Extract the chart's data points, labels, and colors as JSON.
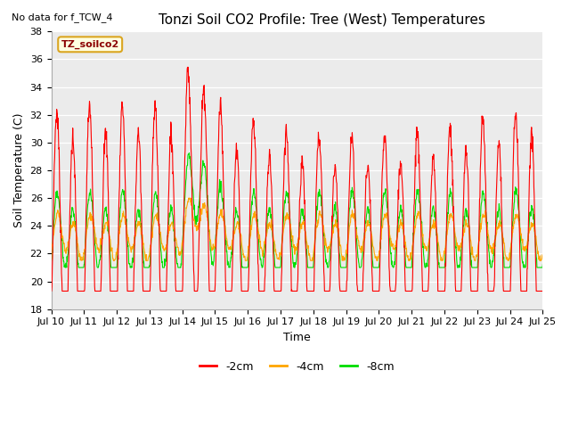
{
  "title": "Tonzi Soil CO2 Profile: Tree (West) Temperatures",
  "subtitle": "No data for f_TCW_4",
  "ylabel": "Soil Temperature (C)",
  "xlabel": "Time",
  "legend_label": "TZ_soilco2",
  "ylim": [
    18,
    38
  ],
  "yticks": [
    18,
    20,
    22,
    24,
    26,
    28,
    30,
    32,
    34,
    36,
    38
  ],
  "xtick_labels": [
    "Jul 10",
    "Jul 11",
    "Jul 12",
    "Jul 13",
    "Jul 14",
    "Jul 15",
    "Jul 16",
    "Jul 17",
    "Jul 18",
    "Jul 19",
    "Jul 20",
    "Jul 21",
    "Jul 22",
    "Jul 23",
    "Jul 24",
    "Jul 25"
  ],
  "line_colors": {
    "2cm": "#ff0000",
    "4cm": "#ffa500",
    "8cm": "#00dd00"
  },
  "legend_labels": [
    "-2cm",
    "-4cm",
    "-8cm"
  ],
  "bg_color": "#ebebeb",
  "plot_bg": "#ebebeb",
  "fig_bg": "#ffffff",
  "title_fontsize": 11,
  "axis_fontsize": 9,
  "tick_fontsize": 8,
  "legend_fontsize": 9
}
